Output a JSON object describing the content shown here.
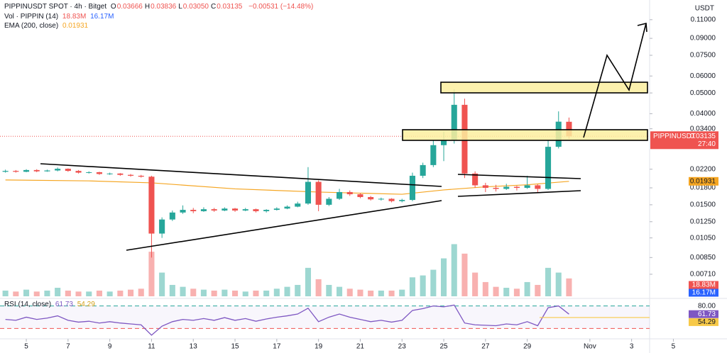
{
  "chart_data": {
    "type": "candlestick",
    "header": {
      "title": "PIPPINUSDT SPOT · 4h · Bitget",
      "items": [
        {
          "k": "O",
          "v": "0.03666"
        },
        {
          "k": "H",
          "v": "0.03836"
        },
        {
          "k": "L",
          "v": "0.03050"
        },
        {
          "k": "C",
          "v": "0.03135"
        }
      ],
      "change": "−0.00531 (−14.48%)"
    },
    "volume_legend": {
      "name": "Vol · PIPPIN (14)",
      "v1": "18.83M",
      "v2": "16.17M"
    },
    "ema_legend": {
      "name": "EMA (200, close)",
      "v": "0.01931"
    },
    "rsi_legend": {
      "name": "RSI (14, close)",
      "v1": "61.73",
      "v2": "54.29"
    },
    "currency": "USDT",
    "symbol": "PIPPINUSDT",
    "countdown": "27:40",
    "up_color": "#26a69a",
    "down_color": "#ef5350",
    "log_scale": true,
    "xlim": [
      3.74,
      38.57
    ],
    "ylim": [
      0.0056,
      0.136
    ],
    "vlim": [
      0,
      80
    ],
    "rsilim": [
      10,
      92
    ],
    "xticks": [
      5,
      7,
      9,
      11,
      13,
      15,
      17,
      19,
      21,
      23,
      25,
      27,
      29,
      {
        "value": 32,
        "label": "Nov"
      },
      {
        "value": 34,
        "label": "3"
      },
      {
        "value": 36,
        "label": "5"
      }
    ],
    "yticks": [
      {
        "value": 0.11,
        "label": "0.11000"
      },
      {
        "value": 0.09,
        "label": "0.09000"
      },
      {
        "value": 0.075,
        "label": "0.07500"
      },
      {
        "value": 0.06,
        "label": "0.06000"
      },
      {
        "value": 0.05,
        "label": "0.05000"
      },
      {
        "value": 0.04,
        "label": "0.04000"
      },
      {
        "value": 0.034,
        "label": "0.03400"
      },
      {
        "value": 0.022,
        "label": "0.02200"
      },
      {
        "value": 0.018,
        "label": "0.01800"
      },
      {
        "value": 0.015,
        "label": "0.01500"
      },
      {
        "value": 0.0125,
        "label": "0.01250"
      },
      {
        "value": 0.0105,
        "label": "0.01050"
      },
      {
        "value": 0.0085,
        "label": "0.00850"
      },
      {
        "value": 0.0071,
        "label": "0.00710"
      }
    ],
    "x": [
      4,
      4.5,
      5,
      5.5,
      6,
      6.5,
      7,
      7.5,
      8,
      8.5,
      9,
      9.5,
      10,
      10.5,
      11,
      11.5,
      12,
      12.5,
      13,
      13.5,
      14,
      14.5,
      15,
      15.5,
      16,
      16.5,
      17,
      17.5,
      18,
      18.5,
      19,
      19.5,
      20,
      20.5,
      21,
      21.5,
      22,
      22.5,
      23,
      23.5,
      24,
      24.5,
      25,
      25.5,
      26,
      26.5,
      27,
      27.5,
      28,
      28.5,
      29,
      29.5,
      30,
      30.5,
      31
    ],
    "ohlc": [
      [
        0.0214,
        0.0219,
        0.0212,
        0.0216
      ],
      [
        0.0216,
        0.0218,
        0.0212,
        0.0214
      ],
      [
        0.0214,
        0.022,
        0.0213,
        0.0218
      ],
      [
        0.0218,
        0.022,
        0.0213,
        0.0215
      ],
      [
        0.0215,
        0.0219,
        0.0214,
        0.0217
      ],
      [
        0.0217,
        0.0224,
        0.0215,
        0.0221
      ],
      [
        0.0221,
        0.0222,
        0.0214,
        0.0216
      ],
      [
        0.0216,
        0.0218,
        0.021,
        0.0212
      ],
      [
        0.0212,
        0.0215,
        0.021,
        0.0213
      ],
      [
        0.0213,
        0.0214,
        0.0207,
        0.0209
      ],
      [
        0.0209,
        0.0212,
        0.0207,
        0.021
      ],
      [
        0.021,
        0.0211,
        0.0205,
        0.0207
      ],
      [
        0.0207,
        0.0209,
        0.0203,
        0.0205
      ],
      [
        0.0205,
        0.0207,
        0.0201,
        0.0203
      ],
      [
        0.0203,
        0.0205,
        0.0085,
        0.011
      ],
      [
        0.011,
        0.0131,
        0.0105,
        0.0128
      ],
      [
        0.0128,
        0.0141,
        0.0126,
        0.0138
      ],
      [
        0.0138,
        0.0149,
        0.0136,
        0.0142
      ],
      [
        0.0142,
        0.0145,
        0.0137,
        0.014
      ],
      [
        0.014,
        0.0146,
        0.0139,
        0.0143
      ],
      [
        0.0143,
        0.0145,
        0.0139,
        0.0141
      ],
      [
        0.0141,
        0.0146,
        0.014,
        0.0144
      ],
      [
        0.0144,
        0.0145,
        0.0139,
        0.0141
      ],
      [
        0.0141,
        0.0145,
        0.014,
        0.0143
      ],
      [
        0.0143,
        0.0144,
        0.0138,
        0.014
      ],
      [
        0.014,
        0.0143,
        0.0138,
        0.0142
      ],
      [
        0.0142,
        0.0146,
        0.0141,
        0.0144
      ],
      [
        0.0144,
        0.0149,
        0.0143,
        0.0147
      ],
      [
        0.0147,
        0.0155,
        0.0146,
        0.0152
      ],
      [
        0.0152,
        0.0225,
        0.015,
        0.0192
      ],
      [
        0.0192,
        0.0195,
        0.014,
        0.015
      ],
      [
        0.015,
        0.0163,
        0.0148,
        0.016
      ],
      [
        0.016,
        0.0178,
        0.0158,
        0.0172
      ],
      [
        0.0172,
        0.0175,
        0.0165,
        0.0168
      ],
      [
        0.0168,
        0.017,
        0.0161,
        0.0163
      ],
      [
        0.0163,
        0.0165,
        0.0157,
        0.0159
      ],
      [
        0.0159,
        0.0162,
        0.0157,
        0.016
      ],
      [
        0.016,
        0.0161,
        0.0154,
        0.0156
      ],
      [
        0.0156,
        0.016,
        0.0154,
        0.0158
      ],
      [
        0.0158,
        0.0212,
        0.0156,
        0.0205
      ],
      [
        0.0205,
        0.0236,
        0.02,
        0.023
      ],
      [
        0.023,
        0.03,
        0.0225,
        0.0285
      ],
      [
        0.0285,
        0.033,
        0.024,
        0.03
      ],
      [
        0.03,
        0.052,
        0.029,
        0.044
      ],
      [
        0.044,
        0.047,
        0.02,
        0.021
      ],
      [
        0.021,
        0.0215,
        0.018,
        0.0185
      ],
      [
        0.0185,
        0.019,
        0.0172,
        0.018
      ],
      [
        0.018,
        0.0186,
        0.0173,
        0.0178
      ],
      [
        0.0178,
        0.0188,
        0.0176,
        0.0182
      ],
      [
        0.0182,
        0.0184,
        0.0175,
        0.018
      ],
      [
        0.018,
        0.0205,
        0.0178,
        0.0185
      ],
      [
        0.0185,
        0.0187,
        0.0172,
        0.0178
      ],
      [
        0.0178,
        0.03,
        0.0176,
        0.028
      ],
      [
        0.028,
        0.041,
        0.0275,
        0.0367
      ],
      [
        0.03666,
        0.03836,
        0.0305,
        0.03135
      ]
    ],
    "volume": [
      6,
      5,
      7,
      5,
      6,
      9,
      6,
      5,
      5,
      6,
      5,
      6,
      7,
      8,
      47,
      25,
      12,
      10,
      8,
      7,
      6,
      7,
      6,
      5,
      6,
      6,
      8,
      10,
      12,
      30,
      18,
      12,
      10,
      8,
      7,
      6,
      6,
      6,
      7,
      20,
      22,
      28,
      40,
      55,
      45,
      25,
      15,
      10,
      9,
      8,
      15,
      12,
      30,
      25,
      18.83
    ],
    "volume_tags": [
      {
        "value": 18.83,
        "label": "18.83M",
        "color": "#ef5350"
      },
      {
        "value": 16.17,
        "label": "16.17M",
        "color": "#2962ff"
      }
    ],
    "ema": {
      "color": "#f5a623",
      "x": [
        4,
        8,
        11,
        15,
        19,
        23,
        25,
        27,
        29,
        31
      ],
      "values": [
        0.0196,
        0.0194,
        0.019,
        0.0178,
        0.0172,
        0.0168,
        0.0176,
        0.0182,
        0.0186,
        0.01931
      ]
    },
    "rsi": {
      "color": "#7e57c2",
      "values": [
        50,
        48,
        55,
        50,
        53,
        58,
        48,
        44,
        46,
        42,
        45,
        42,
        40,
        38,
        15,
        35,
        45,
        50,
        48,
        52,
        48,
        54,
        48,
        52,
        46,
        51,
        55,
        58,
        62,
        75,
        45,
        55,
        62,
        55,
        50,
        45,
        48,
        44,
        48,
        70,
        74,
        80,
        78,
        82,
        42,
        38,
        37,
        36,
        40,
        38,
        45,
        36,
        76,
        80,
        61.73
      ]
    },
    "rsi_ma": {
      "value": 54.29,
      "color": "#f7c948"
    },
    "rsi_upper": {
      "value": 80,
      "label": "80.00"
    },
    "rsi_lower": 30
  }
}
